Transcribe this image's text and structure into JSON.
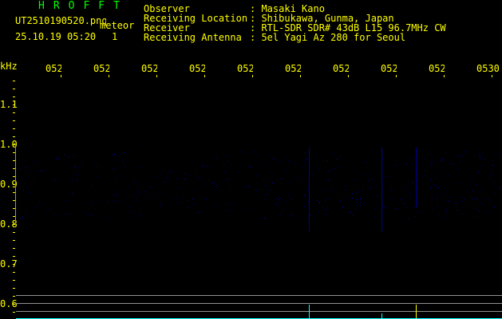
{
  "header": {
    "brand": "HROFFT",
    "filename": "UT2510190520.png",
    "mode": "meteor",
    "datetime": "25.10.19 05:20",
    "count": "1",
    "fields": [
      {
        "label": "Observer",
        "value": ": Masaki Kano"
      },
      {
        "label": "Receiving Location",
        "value": ": Shibukawa, Gunma, Japan"
      },
      {
        "label": "Receiver",
        "value": ": RTL-SDR SDR# 43dB L15 96.7MHz CW"
      },
      {
        "label": "Receiving Antenna",
        "value": ": 5el Yagi Az 280 for Seoul"
      }
    ]
  },
  "axes": {
    "y_unit": "kHz",
    "y_ticks": [
      "1.1",
      "1.0",
      "0.9",
      "0.8",
      "0.7",
      "0.6"
    ],
    "x_ticks": [
      "0521",
      "0522",
      "0523",
      "0524",
      "0525",
      "0526",
      "0527",
      "0528",
      "0529",
      "0530"
    ]
  },
  "colors": {
    "text": "#ffff00",
    "brand": "#00ff00",
    "signal": "#00ffff",
    "noise": "#000080",
    "gridline": "#909090"
  }
}
